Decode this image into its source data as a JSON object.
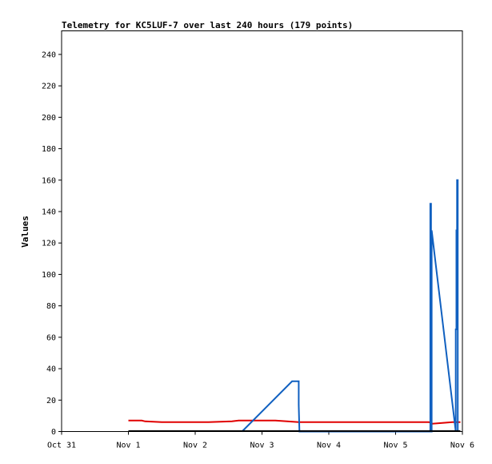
{
  "chart_data": {
    "type": "line",
    "title": "Telemetry for KC5LUF-7 over last 240 hours (179 points)",
    "xlabel": "",
    "ylabel": "Values",
    "xlim": [
      "2023-10-31",
      "2023-11-06"
    ],
    "x_tick_labels": [
      "Oct 31",
      "Nov 1",
      "Nov 2",
      "Nov 3",
      "Nov 4",
      "Nov 5",
      "Nov 6"
    ],
    "ylim": [
      0,
      255
    ],
    "y_ticks": [
      0,
      20,
      40,
      60,
      80,
      100,
      120,
      140,
      160,
      180,
      200,
      220,
      240
    ],
    "grid": false,
    "series": [
      {
        "color": "#e00000",
        "x": [
          1.0,
          1.2,
          1.25,
          1.5,
          2.2,
          2.55,
          2.65,
          3.2,
          3.55,
          4.5,
          5.5,
          5.55,
          5.7,
          5.85,
          5.97
        ],
        "y": [
          7,
          7,
          6.5,
          6,
          6,
          6.5,
          7,
          7,
          6,
          6,
          6,
          5,
          5.5,
          6,
          6
        ]
      },
      {
        "color": "#1060c0",
        "x": [
          2.7,
          3.45,
          3.55,
          3.55,
          3.56,
          5.5,
          5.52,
          5.52,
          5.53,
          5.53,
          5.54,
          5.54,
          5.9,
          5.9,
          5.91,
          5.91,
          5.92,
          5.92,
          5.93,
          5.93
        ],
        "y": [
          0,
          32,
          32,
          17,
          0,
          0,
          0,
          145,
          145,
          0,
          0,
          128,
          0,
          65,
          65,
          128,
          128,
          160,
          160,
          0
        ]
      },
      {
        "color": "#000000",
        "x": [
          1.0,
          5.97
        ],
        "y": [
          0.3,
          0.3
        ]
      }
    ]
  }
}
